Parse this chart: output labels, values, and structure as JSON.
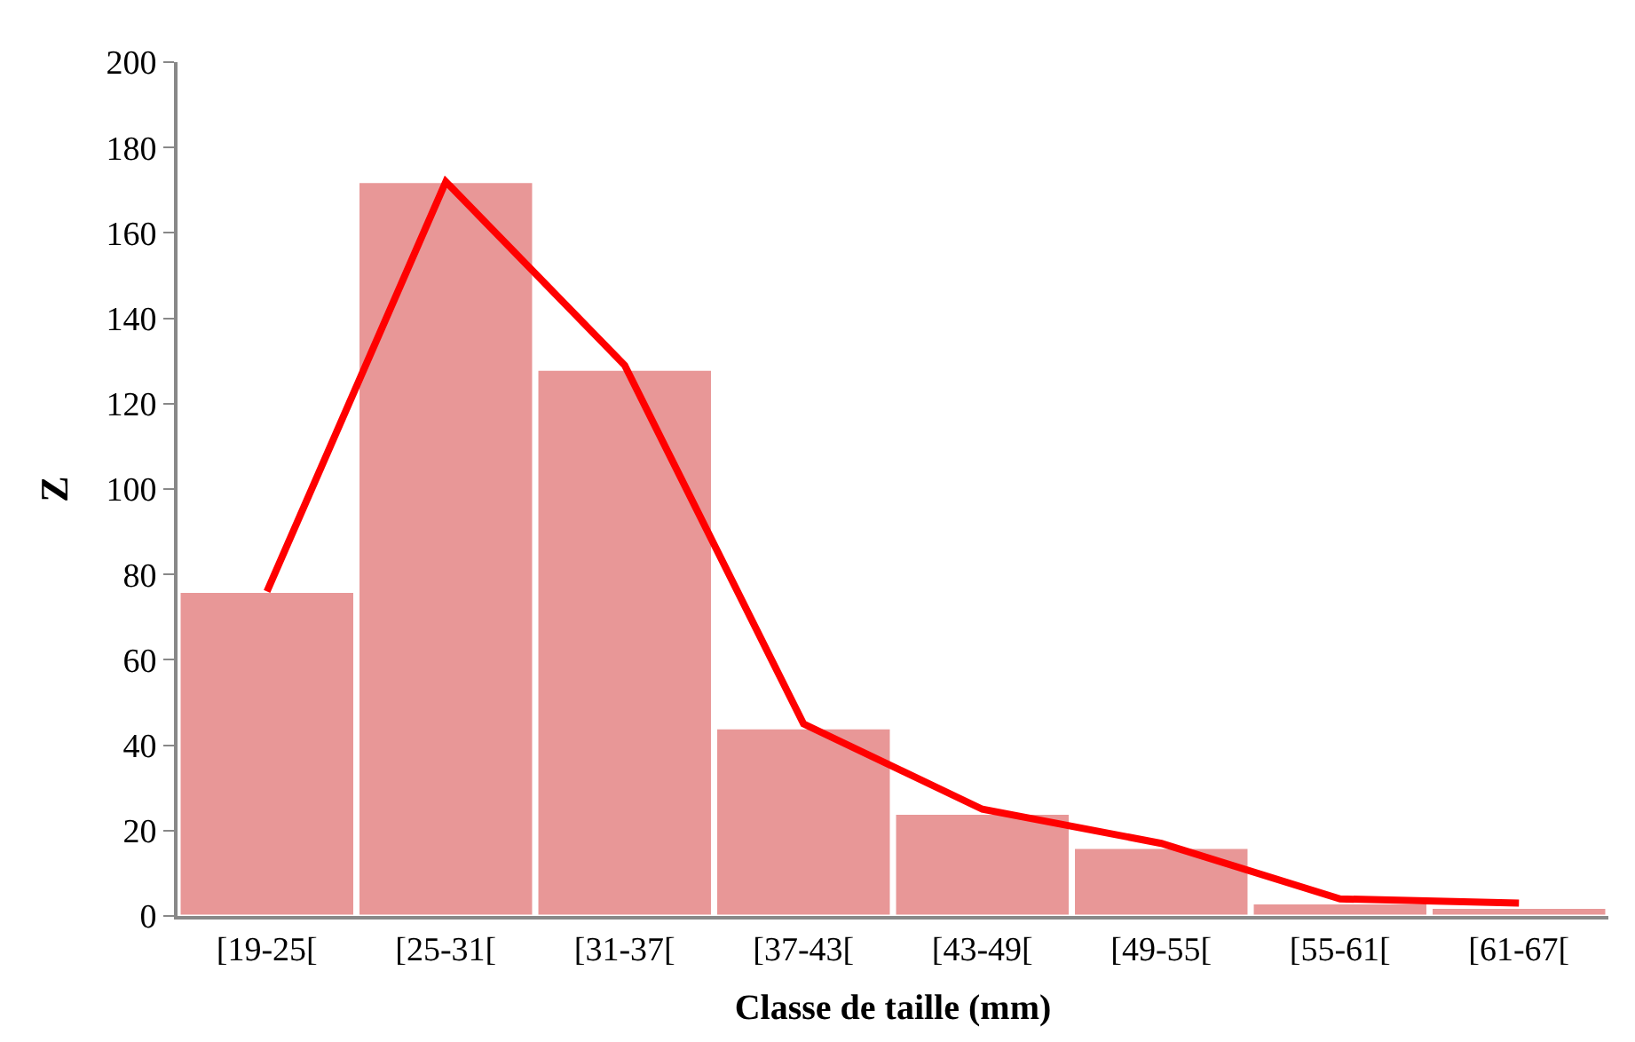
{
  "chart_data": {
    "type": "bar",
    "xlabel": "Classe de taille (mm)",
    "ylabel": "Z",
    "categories": [
      "[19-25[",
      "[25-31[",
      "[31-37[",
      "[37-43[",
      "[43-49[",
      "[49-55[",
      "[55-61[",
      "[61-67["
    ],
    "series": [
      {
        "color": "#e89797",
        "values": [
          76,
          172,
          128,
          44,
          24,
          16,
          3,
          2
        ]
      },
      {
        "type": "line",
        "color": "#ff0000",
        "values": [
          76,
          172,
          129,
          45,
          25,
          17,
          4,
          3
        ]
      }
    ],
    "ylim": [
      0,
      200
    ],
    "yticks": [
      0,
      20,
      40,
      60,
      80,
      100,
      120,
      140,
      160,
      180,
      200
    ],
    "legend": false
  }
}
